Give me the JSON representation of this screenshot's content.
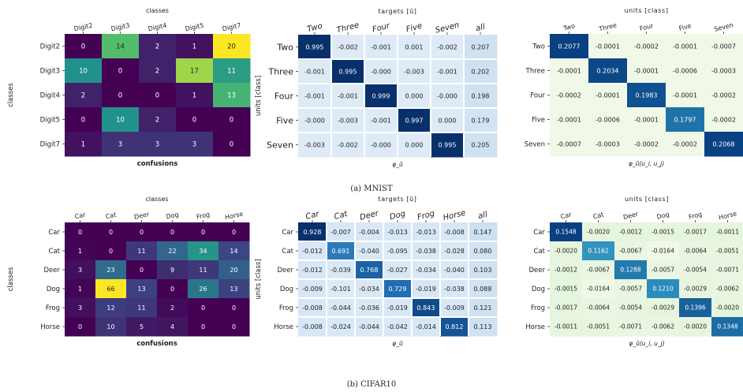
{
  "captions": {
    "a": "(a) MNIST",
    "b": "(b) CIFAR10"
  },
  "chart_data": [
    {
      "type": "heatmap",
      "colormap": "viridis",
      "title": "classes",
      "xlabel": "confusions",
      "ylabel": "classes",
      "x_categories": [
        "Digit2",
        "Digit3",
        "Digit4",
        "Digit5",
        "Digit7"
      ],
      "y_categories": [
        "Digit2",
        "Digit3",
        "Digit4",
        "Digit5",
        "Digit7"
      ],
      "values": [
        [
          0,
          14,
          2,
          1,
          20
        ],
        [
          10,
          0,
          2,
          17,
          11
        ],
        [
          2,
          0,
          0,
          1,
          13
        ],
        [
          0,
          10,
          2,
          0,
          0
        ],
        [
          1,
          3,
          3,
          3,
          0
        ]
      ],
      "labels": [
        [
          "0",
          "14",
          "2",
          "1",
          "20"
        ],
        [
          "10",
          "0",
          "2",
          "17",
          "11"
        ],
        [
          "2",
          "0",
          "0",
          "1",
          "13"
        ],
        [
          "0",
          "10",
          "2",
          "0",
          "0"
        ],
        [
          "1",
          "3",
          "3",
          "3",
          "0"
        ]
      ]
    },
    {
      "type": "heatmap",
      "colormap": "blues",
      "title": "targets [ū]",
      "xlabel": "φ_ū",
      "ylabel": "units [class]",
      "x_categories": [
        "Two",
        "Three",
        "Four",
        "Five",
        "Seven",
        "all"
      ],
      "y_categories": [
        "Two",
        "Three",
        "Four",
        "Five",
        "Seven"
      ],
      "values": [
        [
          0.995,
          -0.002,
          -0.001,
          0.001,
          -0.002,
          0.207
        ],
        [
          -0.001,
          0.995,
          -0.0,
          -0.003,
          -0.001,
          0.202
        ],
        [
          -0.001,
          -0.001,
          0.999,
          0.0,
          -0.0,
          0.198
        ],
        [
          -0.0,
          -0.003,
          -0.001,
          0.997,
          0.0,
          0.179
        ],
        [
          -0.003,
          -0.002,
          -0.0,
          0.0,
          0.995,
          0.205
        ]
      ],
      "labels": [
        [
          "0.995",
          "-0.002",
          "-0.001",
          "0.001",
          "-0.002",
          "0.207"
        ],
        [
          "-0.001",
          "0.995",
          "-0.000",
          "-0.003",
          "-0.001",
          "0.202"
        ],
        [
          "-0.001",
          "-0.001",
          "0.999",
          "0.000",
          "-0.000",
          "0.198"
        ],
        [
          "-0.000",
          "-0.003",
          "-0.001",
          "0.997",
          "0.000",
          "0.179"
        ],
        [
          "-0.003",
          "-0.002",
          "-0.000",
          "0.000",
          "0.995",
          "0.205"
        ]
      ]
    },
    {
      "type": "heatmap",
      "colormap": "gnbu",
      "title": "units [class]",
      "xlabel": "φ_ū(u_i, u_j)",
      "ylabel": "",
      "x_categories": [
        "Two",
        "Three",
        "Four",
        "Five",
        "Seven"
      ],
      "y_categories": [
        "Two",
        "Three",
        "Four",
        "Five",
        "Seven"
      ],
      "values": [
        [
          0.2077,
          -0.0001,
          -0.0002,
          -0.0001,
          -0.0007
        ],
        [
          -0.0001,
          0.2034,
          -0.0001,
          -0.0006,
          -0.0003
        ],
        [
          -0.0002,
          -0.0001,
          0.1983,
          -0.0001,
          -0.0002
        ],
        [
          -0.0001,
          -0.0006,
          -0.0001,
          0.1797,
          -0.0002
        ],
        [
          -0.0007,
          -0.0003,
          -0.0002,
          -0.0002,
          0.2068
        ]
      ],
      "labels": [
        [
          "0.2077",
          "-0.0001",
          "-0.0002",
          "-0.0001",
          "-0.0007"
        ],
        [
          "-0.0001",
          "0.2034",
          "-0.0001",
          "-0.0006",
          "-0.0003"
        ],
        [
          "-0.0002",
          "-0.0001",
          "0.1983",
          "-0.0001",
          "-0.0002"
        ],
        [
          "-0.0001",
          "-0.0006",
          "-0.0001",
          "0.1797",
          "-0.0002"
        ],
        [
          "-0.0007",
          "-0.0003",
          "-0.0002",
          "-0.0002",
          "0.2068"
        ]
      ]
    },
    {
      "type": "heatmap",
      "colormap": "viridis",
      "title": "classes",
      "xlabel": "confusions",
      "ylabel": "classes",
      "x_categories": [
        "Car",
        "Cat",
        "Deer",
        "Dog",
        "Frog",
        "Horse"
      ],
      "y_categories": [
        "Car",
        "Cat",
        "Deer",
        "Dog",
        "Frog",
        "Horse"
      ],
      "values": [
        [
          0,
          0,
          0,
          0,
          0,
          0
        ],
        [
          1,
          0,
          11,
          22,
          34,
          14
        ],
        [
          3,
          23,
          0,
          9,
          11,
          20
        ],
        [
          1,
          66,
          13,
          0,
          26,
          13
        ],
        [
          3,
          12,
          11,
          2,
          0,
          0
        ],
        [
          0,
          10,
          5,
          4,
          0,
          0
        ]
      ],
      "labels": [
        [
          "0",
          "0",
          "0",
          "0",
          "0",
          "0"
        ],
        [
          "1",
          "0",
          "11",
          "22",
          "34",
          "14"
        ],
        [
          "3",
          "23",
          "0",
          "9",
          "11",
          "20"
        ],
        [
          "1",
          "66",
          "13",
          "0",
          "26",
          "13"
        ],
        [
          "3",
          "12",
          "11",
          "2",
          "0",
          "0"
        ],
        [
          "0",
          "10",
          "5",
          "4",
          "0",
          "0"
        ]
      ]
    },
    {
      "type": "heatmap",
      "colormap": "blues",
      "title": "targets [ū]",
      "xlabel": "φ_ū",
      "ylabel": "units [class]",
      "x_categories": [
        "Car",
        "Cat",
        "Deer",
        "Dog",
        "Frog",
        "Horse",
        "all"
      ],
      "y_categories": [
        "Car",
        "Cat",
        "Deer",
        "Dog",
        "Frog",
        "Horse"
      ],
      "values": [
        [
          0.928,
          -0.007,
          -0.004,
          -0.013,
          -0.013,
          -0.008,
          0.147
        ],
        [
          -0.012,
          0.691,
          -0.04,
          -0.095,
          -0.038,
          -0.028,
          0.08
        ],
        [
          -0.012,
          -0.039,
          0.768,
          -0.027,
          -0.034,
          -0.04,
          0.103
        ],
        [
          -0.009,
          -0.101,
          -0.034,
          0.729,
          -0.019,
          -0.038,
          0.088
        ],
        [
          -0.008,
          -0.044,
          -0.036,
          -0.019,
          0.843,
          -0.009,
          0.121
        ],
        [
          -0.008,
          -0.024,
          -0.044,
          -0.042,
          -0.014,
          0.812,
          0.113
        ]
      ],
      "labels": [
        [
          "0.928",
          "-0.007",
          "-0.004",
          "-0.013",
          "-0.013",
          "-0.008",
          "0.147"
        ],
        [
          "-0.012",
          "0.691",
          "-0.040",
          "-0.095",
          "-0.038",
          "-0.028",
          "0.080"
        ],
        [
          "-0.012",
          "-0.039",
          "0.768",
          "-0.027",
          "-0.034",
          "-0.040",
          "0.103"
        ],
        [
          "-0.009",
          "-0.101",
          "-0.034",
          "0.729",
          "-0.019",
          "-0.038",
          "0.088"
        ],
        [
          "-0.008",
          "-0.044",
          "-0.036",
          "-0.019",
          "0.843",
          "-0.009",
          "0.121"
        ],
        [
          "-0.008",
          "-0.024",
          "-0.044",
          "-0.042",
          "-0.014",
          "0.812",
          "0.113"
        ]
      ]
    },
    {
      "type": "heatmap",
      "colormap": "gnbu",
      "title": "units [class]",
      "xlabel": "φ_ū(u_i, u_j)",
      "ylabel": "",
      "x_categories": [
        "Car",
        "Cat",
        "Deer",
        "Dog",
        "Frog",
        "Horse"
      ],
      "y_categories": [
        "Car",
        "Cat",
        "Deer",
        "Dog",
        "Frog",
        "Horse"
      ],
      "values": [
        [
          0.1548,
          -0.002,
          -0.0012,
          -0.0015,
          -0.0017,
          -0.0011
        ],
        [
          -0.002,
          0.1162,
          -0.0067,
          -0.0164,
          -0.0064,
          -0.0051
        ],
        [
          -0.0012,
          -0.0067,
          0.1288,
          -0.0057,
          -0.0054,
          -0.0071
        ],
        [
          -0.0015,
          -0.0164,
          -0.0057,
          0.121,
          -0.0029,
          -0.0062
        ],
        [
          -0.0017,
          -0.0064,
          -0.0054,
          -0.0029,
          0.1396,
          -0.002
        ],
        [
          -0.0011,
          -0.0051,
          -0.0071,
          -0.0062,
          -0.002,
          0.1348
        ]
      ],
      "labels": [
        [
          "0.1548",
          "-0.0020",
          "-0.0012",
          "-0.0015",
          "-0.0017",
          "-0.0011"
        ],
        [
          "-0.0020",
          "0.1162",
          "-0.0067",
          "-0.0164",
          "-0.0064",
          "-0.0051"
        ],
        [
          "-0.0012",
          "-0.0067",
          "0.1288",
          "-0.0057",
          "-0.0054",
          "-0.0071"
        ],
        [
          "-0.0015",
          "-0.0164",
          "-0.0057",
          "0.1210",
          "-0.0029",
          "-0.0062"
        ],
        [
          "-0.0017",
          "-0.0064",
          "-0.0054",
          "-0.0029",
          "0.1396",
          "-0.0020"
        ],
        [
          "-0.0011",
          "-0.0051",
          "-0.0071",
          "-0.0062",
          "-0.0020",
          "0.1348"
        ]
      ]
    }
  ]
}
